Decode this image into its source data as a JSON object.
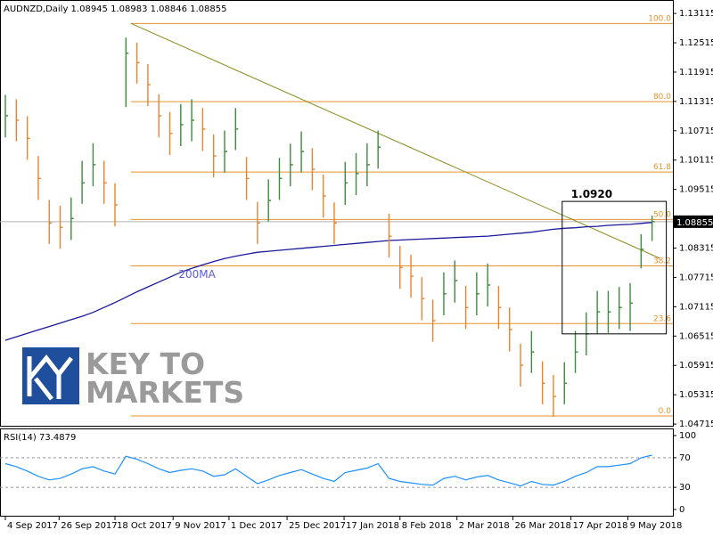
{
  "header": "AUDNZD,Daily  1.08945 1.08983 1.08846 1.08855",
  "watermark": [
    "KEY TO",
    "MARKETS"
  ],
  "chart_data": [
    {
      "type": "ohlc",
      "xlim": [
        -0.49,
        60.9
      ],
      "ylim": [
        1.0468,
        1.1339
      ],
      "yticks": [
        1.13115,
        1.12515,
        1.11915,
        1.11315,
        1.10715,
        1.10115,
        1.09515,
        1.08315,
        1.07715,
        1.07115,
        1.06515,
        1.05915,
        1.05315,
        1.04715
      ],
      "current_price": 1.08855,
      "xticks": [
        {
          "value": 0,
          "label": "4 Sep 2017"
        },
        {
          "value": 4.9,
          "label": "26 Sep 2017"
        },
        {
          "value": 10,
          "label": "18 Oct 2017"
        },
        {
          "value": 15.3,
          "label": "9 Nov 2017"
        },
        {
          "value": 20.4,
          "label": "1 Dec 2017"
        },
        {
          "value": 25.7,
          "label": "25 Dec 2017"
        },
        {
          "value": 30.9,
          "label": "17 Jan 2018"
        },
        {
          "value": 36,
          "label": "8 Feb 2018"
        },
        {
          "value": 41.2,
          "label": "2 Mar 2018"
        },
        {
          "value": 46.3,
          "label": "26 Mar 2018"
        },
        {
          "value": 51.6,
          "label": "17 Apr 2018"
        },
        {
          "value": 56.8,
          "label": "9 May 2018"
        }
      ],
      "up_color": "#3e8a3e",
      "down_color": "#e8842c",
      "high": [
        1.1145,
        1.1136,
        1.1101,
        1.102,
        1.093,
        1.0918,
        1.0935,
        1.101,
        1.1046,
        1.101,
        1.0964,
        1.1262,
        1.1252,
        1.1208,
        1.1146,
        1.111,
        1.1126,
        1.1136,
        1.1118,
        1.1064,
        1.1072,
        1.1118,
        1.1018,
        1.0926,
        1.0972,
        1.1016,
        1.1045,
        1.107,
        1.1036,
        1.0982,
        1.0925,
        1.1008,
        1.1026,
        1.1046,
        1.1072,
        1.0902,
        1.0836,
        1.0818,
        1.0772,
        1.0726,
        1.0782,
        1.0806,
        1.0754,
        1.0782,
        1.08,
        1.0754,
        1.071,
        1.0636,
        1.0662,
        1.06,
        1.0572,
        1.0598,
        1.0662,
        1.07,
        1.0744,
        1.0744,
        1.0752,
        1.076,
        1.086,
        1.0898
      ],
      "low": [
        1.1058,
        1.105,
        1.1012,
        1.093,
        1.084,
        1.083,
        1.0848,
        1.0922,
        1.0958,
        1.0922,
        1.0876,
        1.112,
        1.1168,
        1.1122,
        1.1058,
        1.1022,
        1.104,
        1.105,
        1.103,
        1.0976,
        1.0986,
        1.1032,
        1.093,
        1.084,
        1.0886,
        1.093,
        1.0958,
        1.0986,
        1.095,
        1.0894,
        1.084,
        1.092,
        1.094,
        1.0958,
        1.0994,
        1.0812,
        1.0748,
        1.073,
        1.0684,
        1.064,
        1.0694,
        1.072,
        1.0666,
        1.0694,
        1.0712,
        1.0666,
        1.062,
        1.0548,
        1.0576,
        1.0512,
        1.0486,
        1.0512,
        1.0576,
        1.0612,
        1.0656,
        1.0658,
        1.0666,
        1.0662,
        1.079,
        1.0846
      ],
      "close": [
        1.1102,
        1.1093,
        1.1056,
        1.0974,
        1.0883,
        1.0874,
        1.0892,
        1.0965,
        1.1002,
        1.0965,
        1.092,
        1.123,
        1.1211,
        1.1166,
        1.1102,
        1.1066,
        1.1084,
        1.1093,
        1.1075,
        1.102,
        1.1029,
        1.1075,
        1.0974,
        1.0883,
        1.0929,
        1.0974,
        1.1002,
        1.1029,
        1.0993,
        1.0938,
        1.0883,
        1.0965,
        1.0984,
        1.1002,
        1.1038,
        1.0856,
        1.0792,
        1.0774,
        1.0728,
        1.0683,
        1.0738,
        1.0765,
        1.071,
        1.0738,
        1.0756,
        1.071,
        1.0665,
        1.0592,
        1.0619,
        1.0555,
        1.0528,
        1.0555,
        1.0619,
        1.0656,
        1.0701,
        1.0701,
        1.071,
        1.0719,
        1.0829,
        1.08855
      ],
      "ma": {
        "name": "200MA",
        "color": "#1a1a9c",
        "label_x": 15.8,
        "label_y": 1.0778,
        "values": [
          1.0643,
          1.065,
          1.0657,
          1.0664,
          1.0671,
          1.0678,
          1.0685,
          1.0692,
          1.07,
          1.071,
          1.072,
          1.0731,
          1.0742,
          1.0752,
          1.0762,
          1.0772,
          1.0782,
          1.079,
          1.0797,
          1.0804,
          1.081,
          1.0815,
          1.0819,
          1.0823,
          1.0825,
          1.0827,
          1.0829,
          1.0831,
          1.0833,
          1.0835,
          1.0837,
          1.0839,
          1.0841,
          1.0843,
          1.0845,
          1.0847,
          1.0848,
          1.0849,
          1.085,
          1.0851,
          1.0852,
          1.0853,
          1.0854,
          1.0855,
          1.0856,
          1.0858,
          1.086,
          1.0862,
          1.0864,
          1.0867,
          1.087,
          1.0872,
          1.0873,
          1.0875,
          1.0876,
          1.0878,
          1.0879,
          1.088,
          1.0882,
          1.0884
        ]
      },
      "fib": {
        "color": "#e8932c",
        "start_x": 11.46,
        "levels": [
          {
            "label": "100.0",
            "value": 1.1291
          },
          {
            "label": "80.0",
            "value": 1.1131
          },
          {
            "label": "61.8",
            "value": 1.0987
          },
          {
            "label": "50.0",
            "value": 1.089
          },
          {
            "label": "38.2",
            "value": 1.0795
          },
          {
            "label": "23.6",
            "value": 1.0677
          },
          {
            "label": "0.0",
            "value": 1.0488
          }
        ]
      },
      "trendline": {
        "color": "#8a8a1a",
        "x": [
          11.46,
          59.67
        ],
        "y": [
          1.1291,
          1.0811
        ]
      },
      "box": {
        "x": [
          50.8,
          60.3
        ],
        "y": [
          1.0927,
          1.0656
        ],
        "label": "1.0920"
      }
    },
    {
      "type": "line",
      "title": "RSI(14) 73.4879",
      "color": "#1e90ff",
      "ylim": [
        -9.6,
        108.4
      ],
      "yticks": [
        100,
        70,
        30,
        0
      ],
      "levels": [
        70,
        30
      ],
      "values": [
        62,
        58,
        52,
        45,
        40,
        42,
        48,
        55,
        58,
        52,
        48,
        72,
        68,
        62,
        55,
        50,
        53,
        55,
        52,
        45,
        47,
        55,
        45,
        35,
        40,
        46,
        50,
        54,
        48,
        42,
        38,
        50,
        53,
        56,
        62,
        42,
        38,
        36,
        34,
        33,
        42,
        45,
        40,
        44,
        46,
        40,
        36,
        32,
        38,
        34,
        33,
        38,
        45,
        50,
        58,
        58,
        60,
        62,
        70,
        73.4879
      ]
    }
  ]
}
